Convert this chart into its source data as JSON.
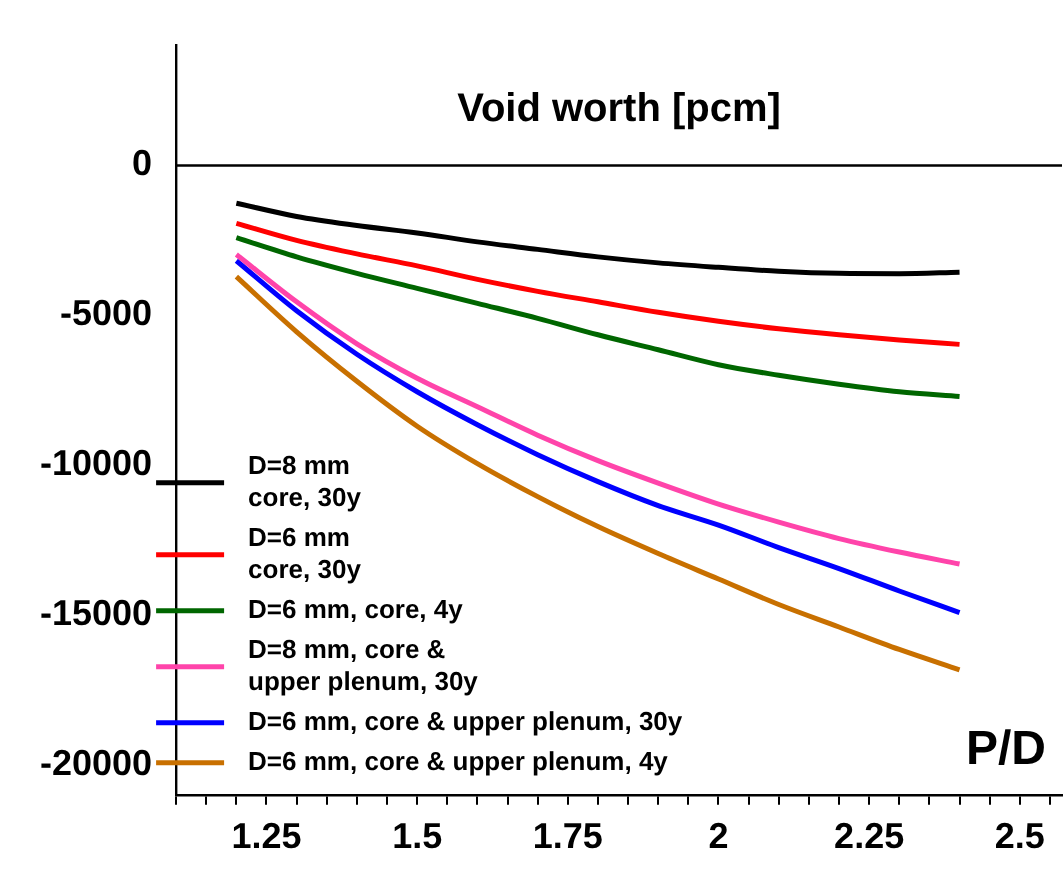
{
  "chart_data": {
    "type": "line",
    "title": "Void worth [pcm]",
    "xlabel": "P/D",
    "x": [
      1.2,
      1.3,
      1.4,
      1.5,
      1.6,
      1.7,
      1.8,
      1.9,
      2.0,
      2.1,
      2.2,
      2.3,
      2.4
    ],
    "series": [
      {
        "name": "D=8 mm\ncore, 30y",
        "color": "#000000",
        "values": [
          -1260,
          -1700,
          -2000,
          -2250,
          -2550,
          -2800,
          -3050,
          -3250,
          -3400,
          -3530,
          -3600,
          -3610,
          -3560
        ]
      },
      {
        "name": "D=6 mm\ncore, 30y",
        "color": "#ff0000",
        "values": [
          -1930,
          -2500,
          -2950,
          -3350,
          -3800,
          -4200,
          -4550,
          -4900,
          -5200,
          -5450,
          -5650,
          -5820,
          -5970
        ]
      },
      {
        "name": "D=6 mm, core, 4y",
        "color": "#006600",
        "values": [
          -2410,
          -3050,
          -3600,
          -4100,
          -4600,
          -5100,
          -5650,
          -6150,
          -6650,
          -7000,
          -7300,
          -7550,
          -7710
        ]
      },
      {
        "name": "D=8 mm, core &\nupper plenum, 30y",
        "color": "#ff44aa",
        "values": [
          -2970,
          -4550,
          -5950,
          -7100,
          -8050,
          -9000,
          -9850,
          -10600,
          -11300,
          -11900,
          -12450,
          -12900,
          -13300
        ]
      },
      {
        "name": "D=6 mm, core & upper plenum, 30y",
        "color": "#0000ff",
        "values": [
          -3180,
          -4850,
          -6300,
          -7550,
          -8650,
          -9650,
          -10550,
          -11350,
          -12000,
          -12750,
          -13450,
          -14200,
          -14920
        ]
      },
      {
        "name": "D=6 mm, core & upper plenum, 4y",
        "color": "#c87000",
        "values": [
          -3710,
          -5550,
          -7200,
          -8700,
          -9950,
          -11050,
          -12050,
          -12950,
          -13800,
          -14650,
          -15400,
          -16150,
          -16830
        ]
      }
    ],
    "xlim": [
      1.1,
      2.57
    ],
    "xticks": [
      {
        "value": 1.1,
        "label": null
      },
      {
        "value": 1.15,
        "label": null
      },
      {
        "value": 1.2,
        "label": null
      },
      1.25,
      {
        "value": 1.3,
        "label": null
      },
      {
        "value": 1.35,
        "label": null
      },
      {
        "value": 1.4,
        "label": null
      },
      {
        "value": 1.45,
        "label": null
      },
      1.5,
      {
        "value": 1.55,
        "label": null
      },
      {
        "value": 1.6,
        "label": null
      },
      {
        "value": 1.65,
        "label": null
      },
      {
        "value": 1.7,
        "label": null
      },
      1.75,
      {
        "value": 1.8,
        "label": null
      },
      {
        "value": 1.85,
        "label": null
      },
      {
        "value": 1.9,
        "label": null
      },
      {
        "value": 1.95,
        "label": null
      },
      2,
      {
        "value": 2.05,
        "label": null
      },
      {
        "value": 2.1,
        "label": null
      },
      {
        "value": 2.15,
        "label": null
      },
      {
        "value": 2.2,
        "label": null
      },
      2.25,
      {
        "value": 2.3,
        "label": null
      },
      {
        "value": 2.35,
        "label": null
      },
      {
        "value": 2.4,
        "label": null
      },
      {
        "value": 2.45,
        "label": null
      },
      2.5,
      {
        "value": 2.55,
        "label": null
      }
    ],
    "ylim": [
      -21000,
      4000
    ],
    "yticks": [
      0,
      -5000,
      -10000,
      -15000,
      -20000
    ],
    "ref_lines": [
      {
        "axis": "y",
        "value": 0,
        "color": "#000000"
      }
    ],
    "grid": false,
    "legend": "bottom left",
    "marker": "none",
    "line_style": "solid"
  }
}
